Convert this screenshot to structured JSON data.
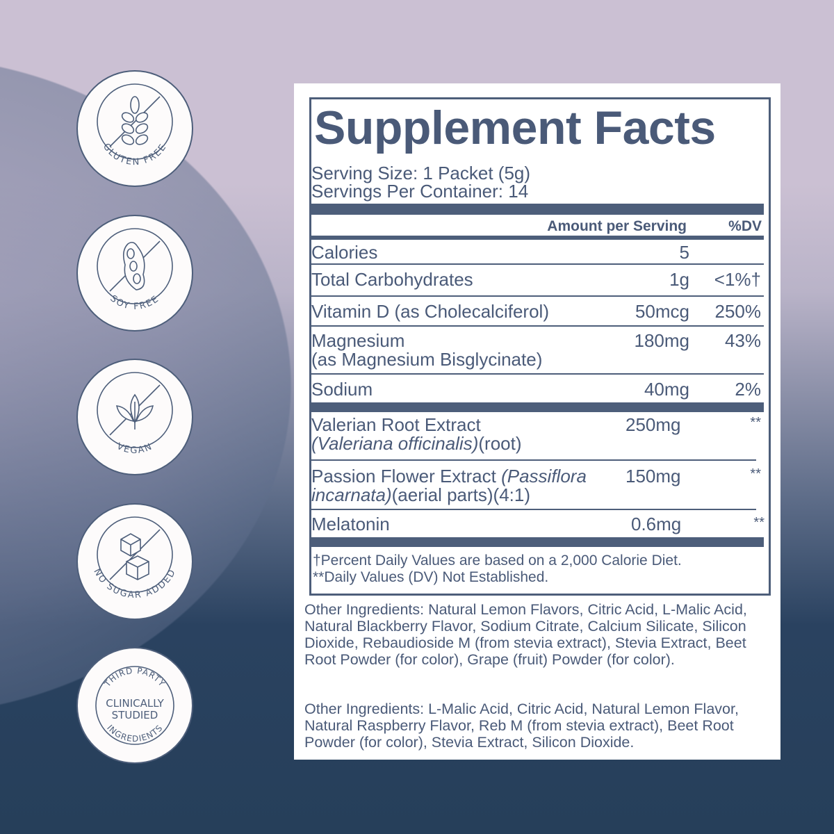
{
  "badges": [
    {
      "label": "GLUTEN FREE",
      "icon": "wheat-icon"
    },
    {
      "label": "SOY FREE",
      "icon": "soybean-icon"
    },
    {
      "label": "VEGAN",
      "icon": "leaf-icon"
    },
    {
      "label": "NO SUGAR ADDED",
      "icon": "sugar-cube-icon"
    },
    {
      "top": "THIRD PARTY",
      "middle1": "CLINICALLY",
      "middle2": "STUDIED",
      "bottom": "INGREDIENTS"
    }
  ],
  "facts": {
    "title": "Supplement Facts",
    "serving_size": "Serving Size: 1 Packet (5g)",
    "servings_per_container": "Servings Per Container: 14",
    "header_amount": "Amount per Serving",
    "header_dv": "%DV",
    "rows": [
      {
        "name": "Calories",
        "amount": "5",
        "dv": ""
      },
      {
        "name": "Total Carbohydrates",
        "amount": "1g",
        "dv": "<1%†"
      },
      {
        "name": "Vitamin D (as Cholecalciferol)",
        "amount": "50mcg",
        "dv": "250%"
      },
      {
        "name": "Magnesium",
        "name2": "(as Magnesium Bisglycinate)",
        "amount": "180mg",
        "dv": "43%"
      },
      {
        "name": "Sodium",
        "amount": "40mg",
        "dv": "2%"
      },
      {
        "name": "Valerian Root Extract",
        "name2_italic": "(Valeriana officinalis)",
        "name2": "(root)",
        "amount": "250mg",
        "dv": "**"
      },
      {
        "name": "Passion Flower Extract ",
        "name_italic": "(Passiflora",
        "name2_italic": "incarnata)",
        "name2": "(aerial parts)(4:1)",
        "amount": "150mg",
        "dv": "**"
      },
      {
        "name": "Melatonin",
        "amount": "0.6mg",
        "dv": "**"
      }
    ],
    "footnote1": "†Percent Daily Values are based on a 2,000 Calorie Diet.",
    "footnote2": "**Daily Values (DV) Not Established."
  },
  "other_ingredients_1": "Other Ingredients: Natural Lemon Flavors, Citric Acid, L-Malic Acid, Natural Blackberry Flavor, Sodium Citrate, Calcium Silicate, Silicon Dioxide, Rebaudioside M (from stevia extract), Stevia Extract, Beet Root Powder (for color), Grape (fruit) Powder (for color).",
  "other_ingredients_2": "Other Ingredients: L-Malic Acid, Citric Acid, Natural Lemon Flavor, Natural Raspberry Flavor, Reb M (from stevia extract), Beet Root Powder (for color), Stevia Extract, Silicon Dioxide.",
  "colors": {
    "text": "#4a5a78",
    "rule": "#4d5e7a",
    "bg_top": "#cbc0d3",
    "bg_bottom": "#263f5a"
  }
}
